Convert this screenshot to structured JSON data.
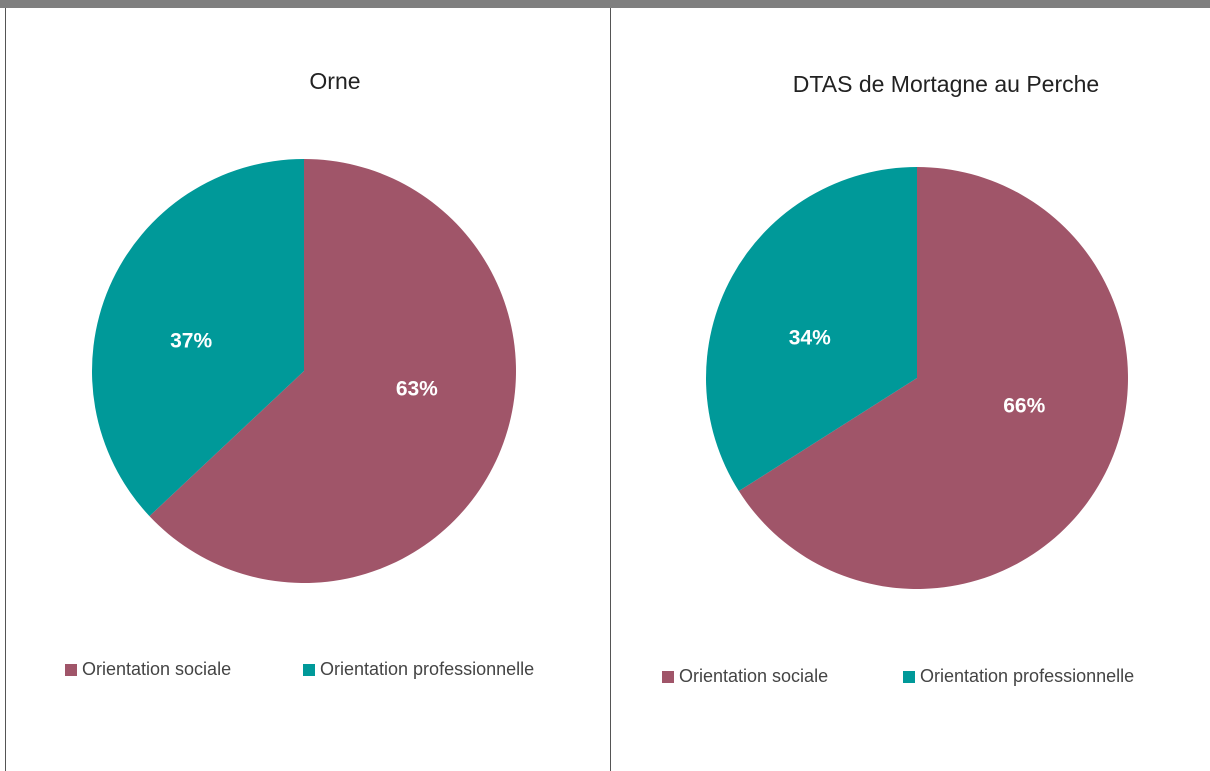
{
  "chart_data": [
    {
      "type": "pie",
      "title": "Orne",
      "categories": [
        "Orientation sociale",
        "Orientation professionnelle"
      ],
      "values": [
        63,
        37
      ],
      "value_labels": [
        "63%",
        "37%"
      ],
      "colors": [
        "#a05569",
        "#009999"
      ]
    },
    {
      "type": "pie",
      "title": "DTAS de Mortagne au Perche",
      "categories": [
        "Orientation sociale",
        "Orientation professionnelle"
      ],
      "values": [
        66,
        34
      ],
      "value_labels": [
        "66%",
        "34%"
      ],
      "colors": [
        "#a05569",
        "#009999"
      ]
    }
  ]
}
